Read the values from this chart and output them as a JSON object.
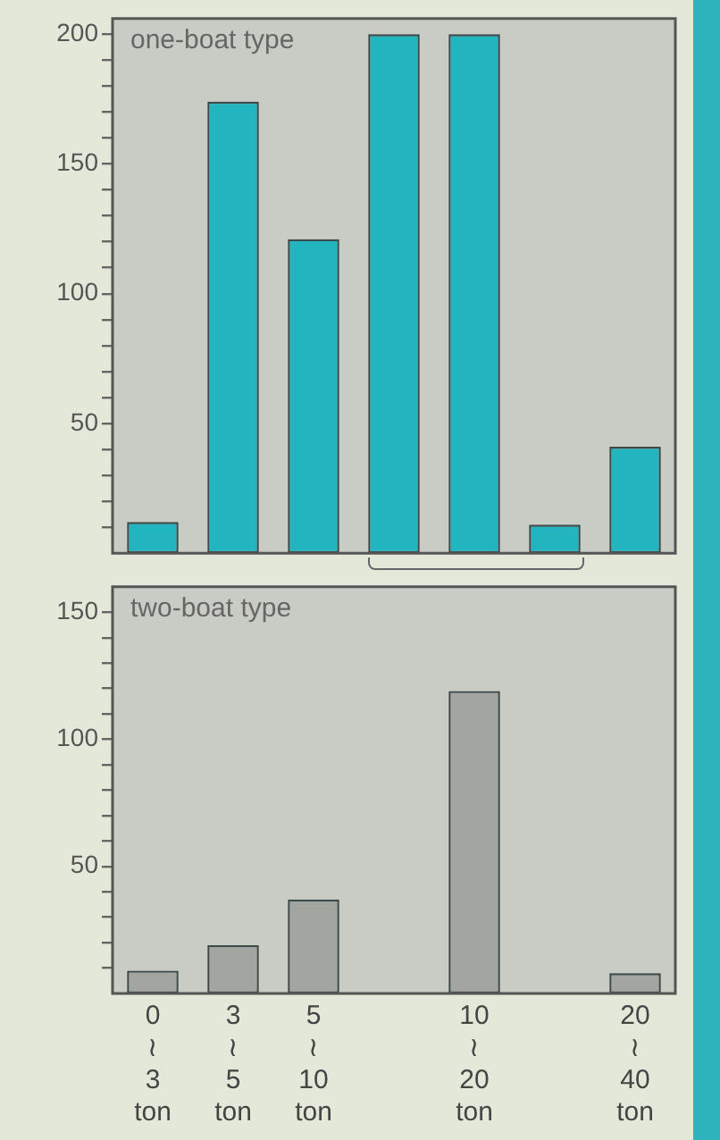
{
  "chart_data": [
    {
      "type": "bar",
      "title": "one-boat type",
      "categories": [
        null,
        null,
        null,
        null,
        null,
        null,
        null
      ],
      "values": [
        12,
        174,
        121,
        200,
        200,
        11,
        41
      ],
      "color": "#22b5c0",
      "ylim": [
        0,
        206
      ],
      "yticks": [
        {
          "value": 10,
          "label": null
        },
        {
          "value": 20,
          "label": null
        },
        {
          "value": 30,
          "label": null
        },
        {
          "value": 40,
          "label": null
        },
        50,
        {
          "value": 60,
          "label": null
        },
        {
          "value": 70,
          "label": null
        },
        {
          "value": 80,
          "label": null
        },
        {
          "value": 90,
          "label": null
        },
        100,
        {
          "value": 110,
          "label": null
        },
        {
          "value": 120,
          "label": null
        },
        {
          "value": 130,
          "label": null
        },
        {
          "value": 140,
          "label": null
        },
        150,
        {
          "value": 160,
          "label": null
        },
        {
          "value": 170,
          "label": null
        },
        {
          "value": 180,
          "label": null
        },
        {
          "value": 190,
          "label": null
        },
        200
      ],
      "tick_labels": "y",
      "grid": false,
      "legend": false
    },
    {
      "type": "bar",
      "title": "two-boat type",
      "categories": [
        "0 ≀ 3 ton",
        "3 ≀ 5 ton",
        "5 ≀ 10 ton",
        null,
        "10 ≀ 20 ton",
        null,
        "20 ≀ 40 ton"
      ],
      "values": [
        9,
        19,
        37,
        null,
        119,
        null,
        8
      ],
      "color": "#a3a5a1",
      "ylim": [
        0,
        160
      ],
      "yticks": [
        {
          "value": 10,
          "label": null
        },
        {
          "value": 20,
          "label": null
        },
        {
          "value": 30,
          "label": null
        },
        {
          "value": 40,
          "label": null
        },
        50,
        {
          "value": 60,
          "label": null
        },
        {
          "value": 70,
          "label": null
        },
        {
          "value": 80,
          "label": null
        },
        {
          "value": 90,
          "label": null
        },
        100,
        {
          "value": 110,
          "label": null
        },
        {
          "value": 120,
          "label": null
        },
        {
          "value": 130,
          "label": null
        },
        {
          "value": 140,
          "label": null
        },
        150
      ],
      "grid": false,
      "legend": false
    }
  ]
}
